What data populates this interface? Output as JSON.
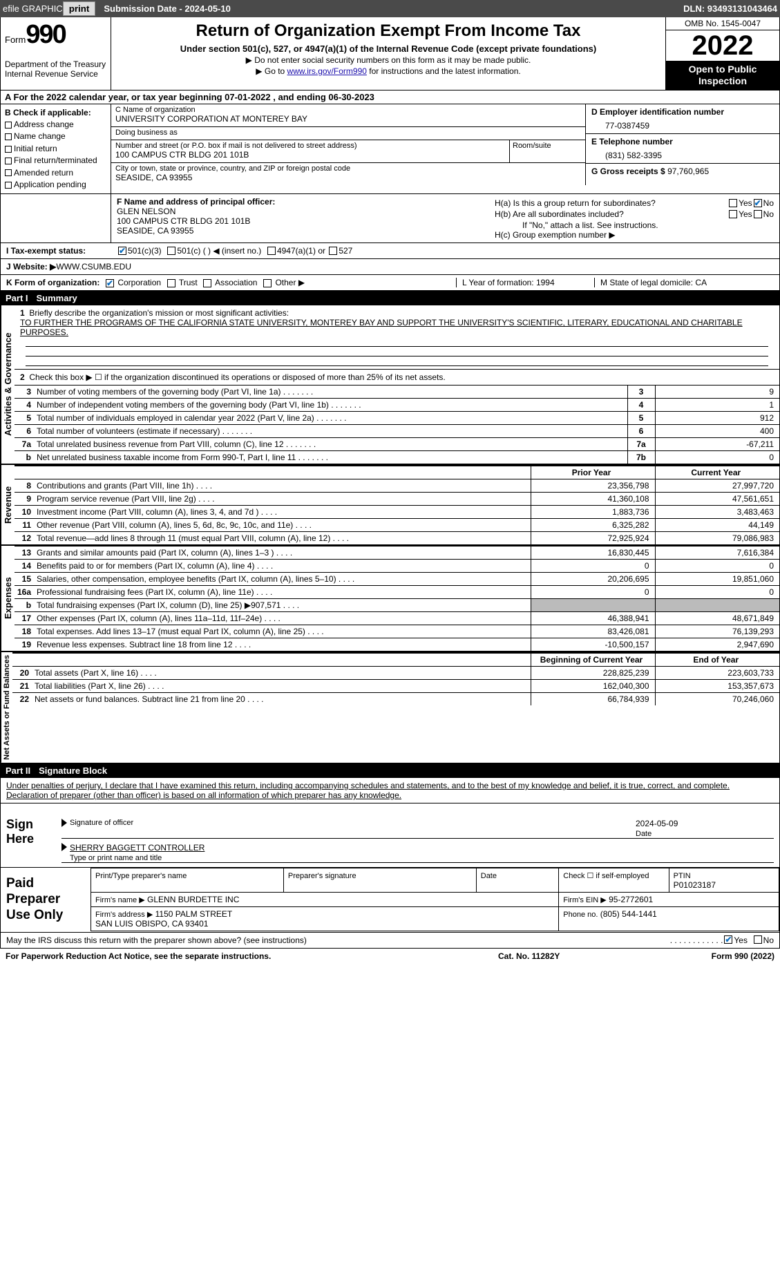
{
  "topbar": {
    "efile_label": "efile GRAPHIC",
    "print_btn": "print",
    "submission_label": "Submission Date - 2024-05-10",
    "dln": "DLN: 93493131043464"
  },
  "header": {
    "form_word": "Form",
    "form_number": "990",
    "dept": "Department of the Treasury\nInternal Revenue Service",
    "title": "Return of Organization Exempt From Income Tax",
    "subtitle": "Under section 501(c), 527, or 4947(a)(1) of the Internal Revenue Code (except private foundations)",
    "note1": "▶ Do not enter social security numbers on this form as it may be made public.",
    "note2_pre": "▶ Go to ",
    "note2_link": "www.irs.gov/Form990",
    "note2_post": " for instructions and the latest information.",
    "omb": "OMB No. 1545-0047",
    "year": "2022",
    "otp": "Open to Public Inspection"
  },
  "rowA": "A For the 2022 calendar year, or tax year beginning 07-01-2022    , and ending 06-30-2023",
  "colB": {
    "title": "B Check if applicable:",
    "items": [
      "Address change",
      "Name change",
      "Initial return",
      "Final return/terminated",
      "Amended return",
      "Application pending"
    ]
  },
  "org": {
    "name_lbl": "C Name of organization",
    "name": "UNIVERSITY CORPORATION AT MONTEREY BAY",
    "dba_lbl": "Doing business as",
    "dba": "",
    "addr_lbl": "Number and street (or P.O. box if mail is not delivered to street address)",
    "addr": "100 CAMPUS CTR BLDG 201 101B",
    "room_lbl": "Room/suite",
    "city_lbl": "City or town, state or province, country, and ZIP or foreign postal code",
    "city": "SEASIDE, CA  93955"
  },
  "colD": {
    "ein_lbl": "D Employer identification number",
    "ein": "77-0387459",
    "phone_lbl": "E Telephone number",
    "phone": "(831) 582-3395",
    "gross_lbl": "G Gross receipts $",
    "gross": "97,760,965"
  },
  "rowF": {
    "lbl": "F  Name and address of principal officer:",
    "name": "GLEN NELSON",
    "addr": "100 CAMPUS CTR BLDG 201 101B\nSEASIDE, CA  93955"
  },
  "rowH": {
    "ha": "H(a)  Is this a group return for subordinates?",
    "hb": "H(b)  Are all subordinates included?",
    "hb_note": "If \"No,\" attach a list. See instructions.",
    "hc": "H(c)  Group exemption number ▶",
    "yes": "Yes",
    "no": "No"
  },
  "rowI": {
    "lbl": "I    Tax-exempt status:",
    "opts": [
      "501(c)(3)",
      "501(c) (  ) ◀ (insert no.)",
      "4947(a)(1) or",
      "527"
    ]
  },
  "rowJ": {
    "lbl": "J   Website: ▶",
    "val": " WWW.CSUMB.EDU"
  },
  "rowK": {
    "lbl": "K Form of organization:",
    "opts": [
      "Corporation",
      "Trust",
      "Association",
      "Other ▶"
    ],
    "l": "L Year of formation: 1994",
    "m": "M State of legal domicile: CA"
  },
  "part1": {
    "header_num": "Part I",
    "header_title": "Summary",
    "q1_lbl": "1",
    "q1": "Briefly describe the organization's mission or most significant activities:",
    "q1_text": "TO FURTHER THE PROGRAMS OF THE CALIFORNIA STATE UNIVERSITY, MONTEREY BAY AND SUPPORT THE UNIVERSITY'S SCIENTIFIC, LITERARY, EDUCATIONAL AND CHARITABLE PURPOSES.",
    "q2_lbl": "2",
    "q2": "Check this box ▶ ☐  if the organization discontinued its operations or disposed of more than 25% of its net assets.",
    "lines_gov": [
      {
        "n": "3",
        "d": "Number of voting members of the governing body (Part VI, line 1a)",
        "box": "3",
        "v": "9"
      },
      {
        "n": "4",
        "d": "Number of independent voting members of the governing body (Part VI, line 1b)",
        "box": "4",
        "v": "1"
      },
      {
        "n": "5",
        "d": "Total number of individuals employed in calendar year 2022 (Part V, line 2a)",
        "box": "5",
        "v": "912"
      },
      {
        "n": "6",
        "d": "Total number of volunteers (estimate if necessary)",
        "box": "6",
        "v": "400"
      },
      {
        "n": "7a",
        "d": "Total unrelated business revenue from Part VIII, column (C), line 12",
        "box": "7a",
        "v": "-67,211"
      },
      {
        "n": "b",
        "d": "Net unrelated business taxable income from Form 990-T, Part I, line 11",
        "box": "7b",
        "v": "0"
      }
    ],
    "hdr_prior": "Prior Year",
    "hdr_curr": "Current Year",
    "lines_rev": [
      {
        "n": "8",
        "d": "Contributions and grants (Part VIII, line 1h)",
        "p": "23,356,798",
        "c": "27,997,720"
      },
      {
        "n": "9",
        "d": "Program service revenue (Part VIII, line 2g)",
        "p": "41,360,108",
        "c": "47,561,651"
      },
      {
        "n": "10",
        "d": "Investment income (Part VIII, column (A), lines 3, 4, and 7d )",
        "p": "1,883,736",
        "c": "3,483,463"
      },
      {
        "n": "11",
        "d": "Other revenue (Part VIII, column (A), lines 5, 6d, 8c, 9c, 10c, and 11e)",
        "p": "6,325,282",
        "c": "44,149"
      },
      {
        "n": "12",
        "d": "Total revenue—add lines 8 through 11 (must equal Part VIII, column (A), line 12)",
        "p": "72,925,924",
        "c": "79,086,983"
      }
    ],
    "lines_exp": [
      {
        "n": "13",
        "d": "Grants and similar amounts paid (Part IX, column (A), lines 1–3 )",
        "p": "16,830,445",
        "c": "7,616,384"
      },
      {
        "n": "14",
        "d": "Benefits paid to or for members (Part IX, column (A), line 4)",
        "p": "0",
        "c": "0"
      },
      {
        "n": "15",
        "d": "Salaries, other compensation, employee benefits (Part IX, column (A), lines 5–10)",
        "p": "20,206,695",
        "c": "19,851,060"
      },
      {
        "n": "16a",
        "d": "Professional fundraising fees (Part IX, column (A), line 11e)",
        "p": "0",
        "c": "0"
      },
      {
        "n": "b",
        "d": "Total fundraising expenses (Part IX, column (D), line 25) ▶907,571",
        "p": "",
        "c": "",
        "shade": true
      },
      {
        "n": "17",
        "d": "Other expenses (Part IX, column (A), lines 11a–11d, 11f–24e)",
        "p": "46,388,941",
        "c": "48,671,849"
      },
      {
        "n": "18",
        "d": "Total expenses. Add lines 13–17 (must equal Part IX, column (A), line 25)",
        "p": "83,426,081",
        "c": "76,139,293"
      },
      {
        "n": "19",
        "d": "Revenue less expenses. Subtract line 18 from line 12",
        "p": "-10,500,157",
        "c": "2,947,690"
      }
    ],
    "hdr_beg": "Beginning of Current Year",
    "hdr_end": "End of Year",
    "lines_net": [
      {
        "n": "20",
        "d": "Total assets (Part X, line 16)",
        "p": "228,825,239",
        "c": "223,603,733"
      },
      {
        "n": "21",
        "d": "Total liabilities (Part X, line 26)",
        "p": "162,040,300",
        "c": "153,357,673"
      },
      {
        "n": "22",
        "d": "Net assets or fund balances. Subtract line 21 from line 20",
        "p": "66,784,939",
        "c": "70,246,060"
      }
    ],
    "vlabels": {
      "gov": "Activities & Governance",
      "rev": "Revenue",
      "exp": "Expenses",
      "net": "Net Assets or Fund Balances"
    }
  },
  "part2": {
    "header_num": "Part II",
    "header_title": "Signature Block",
    "decl": "Under penalties of perjury, I declare that I have examined this return, including accompanying schedules and statements, and to the best of my knowledge and belief, it is true, correct, and complete. Declaration of preparer (other than officer) is based on all information of which preparer has any knowledge.",
    "sign_here": "Sign Here",
    "sig_officer": "Signature of officer",
    "sig_date": "2024-05-09",
    "sig_date_lbl": "Date",
    "sig_name": "SHERRY BAGGETT  CONTROLLER",
    "sig_name_lbl": "Type or print name and title",
    "paid_label": "Paid Preparer Use Only",
    "prep_name_lbl": "Print/Type preparer's name",
    "prep_sig_lbl": "Preparer's signature",
    "prep_date_lbl": "Date",
    "prep_check_lbl": "Check ☐ if self-employed",
    "ptin_lbl": "PTIN",
    "ptin": "P01023187",
    "firm_name_lbl": "Firm's name    ▶",
    "firm_name": "GLENN BURDETTE INC",
    "firm_ein_lbl": "Firm's EIN ▶",
    "firm_ein": "95-2772601",
    "firm_addr_lbl": "Firm's address ▶",
    "firm_addr": "1150 PALM STREET\nSAN LUIS OBISPO, CA  93401",
    "firm_phone_lbl": "Phone no.",
    "firm_phone": "(805) 544-1441"
  },
  "discuss": {
    "q": "May the IRS discuss this return with the preparer shown above? (see instructions)",
    "yes": "Yes",
    "no": "No"
  },
  "footer": {
    "left": "For Paperwork Reduction Act Notice, see the separate instructions.",
    "mid": "Cat. No. 11282Y",
    "right": "Form 990 (2022)"
  }
}
